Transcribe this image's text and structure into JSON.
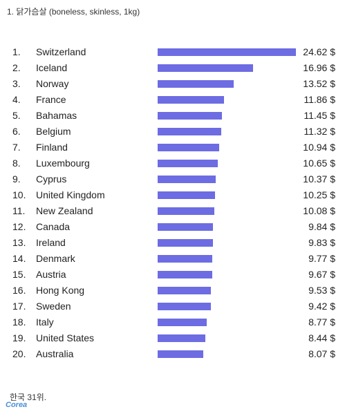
{
  "title": "1. 닭가슴살 (boneless, skinless, 1kg)",
  "footer": "한국 31위.",
  "watermark": "Corea",
  "bar_color": "#6d6ce2",
  "chart_data": {
    "type": "bar",
    "orientation": "horizontal",
    "title": "1. 닭가슴살 (boneless, skinless, 1kg)",
    "xlabel": "",
    "ylabel": "",
    "unit": "$",
    "xlim": [
      0,
      24.62
    ],
    "grid": false,
    "ranks": [
      "1.",
      "2.",
      "3.",
      "4.",
      "5.",
      "6.",
      "7.",
      "8.",
      "9.",
      "10.",
      "11.",
      "12.",
      "13.",
      "14.",
      "15.",
      "16.",
      "17.",
      "18.",
      "19.",
      "20."
    ],
    "categories": [
      "Switzerland",
      "Iceland",
      "Norway",
      "France",
      "Bahamas",
      "Belgium",
      "Finland",
      "Luxembourg",
      "Cyprus",
      "United Kingdom",
      "New Zealand",
      "Canada",
      "Ireland",
      "Denmark",
      "Austria",
      "Hong Kong",
      "Sweden",
      "Italy",
      "United States",
      "Australia"
    ],
    "values": [
      24.62,
      16.96,
      13.52,
      11.86,
      11.45,
      11.32,
      10.94,
      10.65,
      10.37,
      10.25,
      10.08,
      9.84,
      9.83,
      9.77,
      9.67,
      9.53,
      9.42,
      8.77,
      8.44,
      8.07
    ],
    "value_labels": [
      "24.62 $",
      "16.96 $",
      "13.52 $",
      "11.86 $",
      "11.45 $",
      "11.32 $",
      "10.94 $",
      "10.65 $",
      "10.37 $",
      "10.25 $",
      "10.08 $",
      "9.84 $",
      "9.83 $",
      "9.77 $",
      "9.67 $",
      "9.53 $",
      "9.42 $",
      "8.77 $",
      "8.44 $",
      "8.07 $"
    ]
  }
}
